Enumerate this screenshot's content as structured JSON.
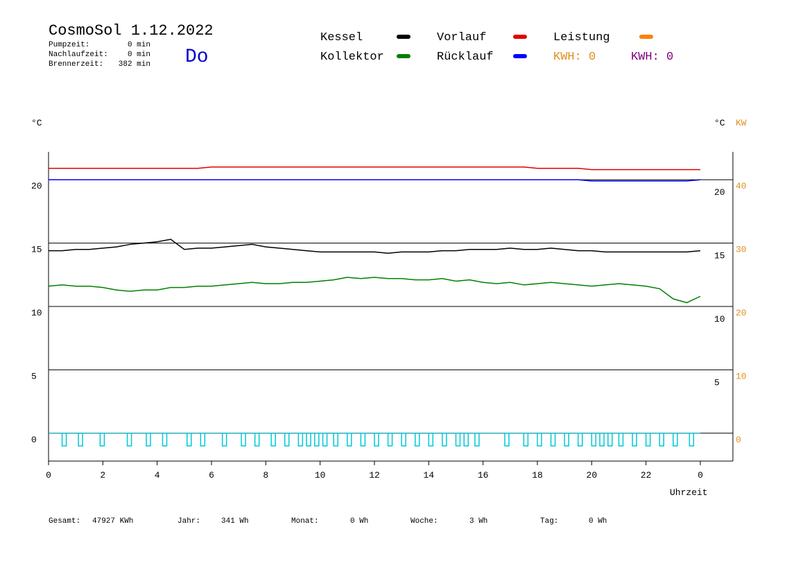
{
  "chart_data": {
    "type": "line",
    "title": "CosmoSol 1.12.2022",
    "day": "Do",
    "day_color": "#0000cc",
    "info": [
      {
        "label": "Pumpzeit:",
        "value": "0 min"
      },
      {
        "label": "Nachlaufzeit:",
        "value": "0 min"
      },
      {
        "label": "Brennerzeit:",
        "value": "382 min"
      }
    ],
    "x": [
      0,
      0.5,
      1,
      1.5,
      2,
      2.5,
      3,
      3.5,
      4,
      4.5,
      5,
      5.5,
      6,
      6.5,
      7,
      7.5,
      8,
      8.5,
      9,
      9.5,
      10,
      10.5,
      11,
      11.5,
      12,
      12.5,
      13,
      13.5,
      14,
      14.5,
      15,
      15.5,
      16,
      16.5,
      17,
      17.5,
      18,
      18.5,
      19,
      19.5,
      20,
      20.5,
      21,
      21.5,
      22,
      22.5,
      23,
      23.5,
      24
    ],
    "series": [
      {
        "name": "Kessel",
        "color": "#000000",
        "values": [
          14.4,
          14.4,
          14.5,
          14.5,
          14.6,
          14.7,
          14.9,
          15.0,
          15.1,
          15.3,
          14.5,
          14.6,
          14.6,
          14.7,
          14.8,
          14.9,
          14.7,
          14.6,
          14.5,
          14.4,
          14.3,
          14.3,
          14.3,
          14.3,
          14.3,
          14.2,
          14.3,
          14.3,
          14.3,
          14.4,
          14.4,
          14.5,
          14.5,
          14.5,
          14.6,
          14.5,
          14.5,
          14.6,
          14.5,
          14.4,
          14.4,
          14.3,
          14.3,
          14.3,
          14.3,
          14.3,
          14.3,
          14.3,
          14.4
        ]
      },
      {
        "name": "Kollektor",
        "color": "#008000",
        "values": [
          11.6,
          11.7,
          11.6,
          11.6,
          11.5,
          11.3,
          11.2,
          11.3,
          11.3,
          11.5,
          11.5,
          11.6,
          11.6,
          11.7,
          11.8,
          11.9,
          11.8,
          11.8,
          11.9,
          11.9,
          12.0,
          12.1,
          12.3,
          12.2,
          12.3,
          12.2,
          12.2,
          12.1,
          12.1,
          12.2,
          12.0,
          12.1,
          11.9,
          11.8,
          11.9,
          11.7,
          11.8,
          11.9,
          11.8,
          11.7,
          11.6,
          11.7,
          11.8,
          11.7,
          11.6,
          11.4,
          10.6,
          10.3,
          10.8
        ]
      },
      {
        "name": "Vorlauf",
        "color": "#e00000",
        "values": [
          20.9,
          20.9,
          20.9,
          20.9,
          20.9,
          20.9,
          20.9,
          20.9,
          20.9,
          20.9,
          20.9,
          20.9,
          21.0,
          21.0,
          21.0,
          21.0,
          21.0,
          21.0,
          21.0,
          21.0,
          21.0,
          21.0,
          21.0,
          21.0,
          21.0,
          21.0,
          21.0,
          21.0,
          21.0,
          21.0,
          21.0,
          21.0,
          21.0,
          21.0,
          21.0,
          21.0,
          20.9,
          20.9,
          20.9,
          20.9,
          20.8,
          20.8,
          20.8,
          20.8,
          20.8,
          20.8,
          20.8,
          20.8,
          20.8
        ]
      },
      {
        "name": "Rücklauf",
        "color": "#0000ff",
        "values": [
          20.0,
          20.0,
          20.0,
          20.0,
          20.0,
          20.0,
          20.0,
          20.0,
          20.0,
          20.0,
          20.0,
          20.0,
          20.0,
          20.0,
          20.0,
          20.0,
          20.0,
          20.0,
          20.0,
          20.0,
          20.0,
          20.0,
          20.0,
          20.0,
          20.0,
          20.0,
          20.0,
          20.0,
          20.0,
          20.0,
          20.0,
          20.0,
          20.0,
          20.0,
          20.0,
          20.0,
          20.0,
          20.0,
          20.0,
          20.0,
          19.9,
          19.9,
          19.9,
          19.9,
          19.9,
          19.9,
          19.9,
          19.9,
          20.0
        ]
      }
    ],
    "power": {
      "name": "Leistung",
      "color": "#ff8000"
    },
    "kwh": [
      {
        "label": "KWH: 0",
        "color": "#e09020"
      },
      {
        "label": "KWH: 0",
        "color": "#800080"
      }
    ],
    "pulse": {
      "color": "#00c8d8",
      "x": [
        0.5,
        1.1,
        1.9,
        2.9,
        3.6,
        4.2,
        5.1,
        5.6,
        6.4,
        7.1,
        7.6,
        8.2,
        8.7,
        9.2,
        9.5,
        9.8,
        10.1,
        10.5,
        11.0,
        11.5,
        12.0,
        12.5,
        13.0,
        13.5,
        14.0,
        14.5,
        15.0,
        15.3,
        15.7,
        16.8,
        17.5,
        18.0,
        18.5,
        19.0,
        19.5,
        20.0,
        20.3,
        20.6,
        21.0,
        21.5,
        22.0,
        22.5,
        23.0,
        23.6
      ],
      "values": [
        -1,
        -1,
        -1,
        -1,
        -1,
        -1,
        -1,
        -1,
        -1,
        -1,
        -1,
        -1,
        -1,
        -1,
        -1,
        -1,
        -1,
        -1,
        -1,
        -1,
        -1,
        -1,
        -1,
        -1,
        -1,
        -1,
        -1,
        -1,
        -1,
        -1,
        -1,
        -1,
        -1,
        -1,
        -1,
        -1,
        -1,
        -1,
        -1,
        -1,
        -1,
        -1,
        -1,
        -1
      ]
    },
    "xlim": [
      0,
      25.2
    ],
    "xticks": [
      0,
      2,
      4,
      6,
      8,
      10,
      12,
      14,
      16,
      18,
      20,
      22,
      {
        "value": 24,
        "label": "0"
      }
    ],
    "xlabel": "Uhrzeit",
    "ylim": [
      -2.2,
      22.2
    ],
    "yticks": [
      0,
      5,
      10,
      15,
      20
    ],
    "ylabel": "°C",
    "yticks_right": [
      5,
      10,
      15,
      20
    ],
    "ylabel_right": "°C",
    "y2lim": [
      -4.4,
      44.4
    ],
    "y2ticks": [
      0,
      10,
      20,
      30,
      40
    ],
    "y2label": "KW",
    "y2color": "#e09020",
    "grid": true,
    "footer": [
      {
        "label": "Gesamt:",
        "value": "47927 KWh"
      },
      {
        "label": "Jahr:",
        "value": "341 Wh"
      },
      {
        "label": "Monat:",
        "value": "0 Wh"
      },
      {
        "label": "Woche:",
        "value": "3 Wh"
      },
      {
        "label": "Tag:",
        "value": "0 Wh"
      }
    ]
  }
}
